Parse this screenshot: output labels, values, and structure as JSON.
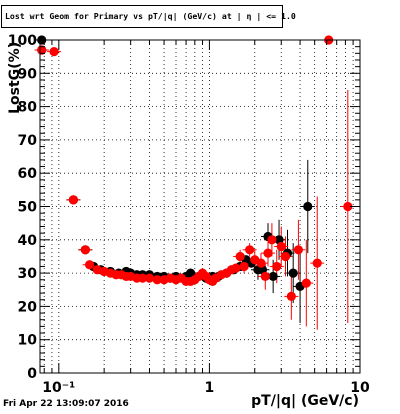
{
  "title": "Lost wrt Geom for Primary vs pT/|q| (GeV/c) at | η | <= 1.0",
  "footer": "Fri Apr 22 13:09:07 2016",
  "chart_data": {
    "type": "scatter",
    "title": "Lost wrt Geom for Primary vs pT/|q| (GeV/c) at | η | <= 1.0",
    "xlabel": "pT/|q| (GeV/c)",
    "ylabel": "LostG(%)",
    "xscale": "log",
    "xlim": [
      0.075,
      10
    ],
    "ylim": [
      0,
      100
    ],
    "xticklabels": [
      "10⁻¹",
      "1",
      "10"
    ],
    "yticks": [
      0,
      10,
      20,
      30,
      40,
      50,
      60,
      70,
      80,
      90,
      100
    ],
    "grid": true,
    "legend": "none",
    "series": [
      {
        "color": "#000000",
        "points": [
          [
            0.077,
            100
          ],
          [
            0.077,
            97
          ],
          [
            0.125,
            52
          ],
          [
            0.15,
            37
          ],
          [
            0.17,
            32
          ],
          [
            0.19,
            31
          ],
          [
            0.22,
            30.5
          ],
          [
            0.25,
            30
          ],
          [
            0.28,
            30.5
          ],
          [
            0.3,
            30
          ],
          [
            0.33,
            29.5
          ],
          [
            0.36,
            29.5
          ],
          [
            0.4,
            29.5
          ],
          [
            0.45,
            29
          ],
          [
            0.5,
            29
          ],
          [
            0.55,
            28.5
          ],
          [
            0.6,
            29
          ],
          [
            0.7,
            29
          ],
          [
            0.75,
            30
          ],
          [
            0.85,
            29
          ],
          [
            0.95,
            28.5
          ],
          [
            1.05,
            29
          ],
          [
            1.15,
            29
          ],
          [
            1.3,
            30
          ],
          [
            1.45,
            31
          ],
          [
            1.6,
            32
          ],
          [
            1.75,
            34
          ],
          [
            1.9,
            33
          ],
          [
            2.1,
            31
          ],
          [
            2.25,
            31
          ],
          [
            2.45,
            41
          ],
          [
            2.65,
            29
          ],
          [
            2.9,
            40
          ],
          [
            3.3,
            36
          ],
          [
            3.6,
            30
          ],
          [
            4.0,
            26
          ],
          [
            4.5,
            50
          ]
        ],
        "errors": [
          [
            0,
            0
          ],
          [
            0,
            0
          ],
          [
            0,
            0
          ],
          [
            0,
            0
          ],
          [
            0,
            0
          ],
          [
            0,
            0
          ],
          [
            0,
            0
          ],
          [
            0,
            0
          ],
          [
            0,
            0
          ],
          [
            0,
            0
          ],
          [
            0,
            0
          ],
          [
            0,
            0
          ],
          [
            0,
            0
          ],
          [
            0,
            0
          ],
          [
            0,
            0
          ],
          [
            0,
            0
          ],
          [
            0,
            0
          ],
          [
            0,
            0
          ],
          [
            0,
            0
          ],
          [
            0,
            0
          ],
          [
            0,
            0
          ],
          [
            0,
            0
          ],
          [
            0,
            0
          ],
          [
            0,
            0
          ],
          [
            0,
            0
          ],
          [
            0,
            0
          ],
          [
            0,
            0
          ],
          [
            0,
            0
          ],
          [
            3,
            3
          ],
          [
            3,
            3
          ],
          [
            4,
            4
          ],
          [
            5,
            5
          ],
          [
            6,
            6
          ],
          [
            7,
            7
          ],
          [
            9,
            9
          ],
          [
            11,
            11
          ],
          [
            14,
            14
          ]
        ]
      },
      {
        "color": "#ff0000",
        "points": [
          [
            0.077,
            97
          ],
          [
            0.093,
            96.5
          ],
          [
            0.125,
            52
          ],
          [
            0.15,
            37
          ],
          [
            0.16,
            32.5
          ],
          [
            0.18,
            31
          ],
          [
            0.2,
            30.5
          ],
          [
            0.22,
            30
          ],
          [
            0.24,
            29.5
          ],
          [
            0.26,
            29.5
          ],
          [
            0.28,
            29
          ],
          [
            0.3,
            29
          ],
          [
            0.33,
            28.5
          ],
          [
            0.36,
            28.5
          ],
          [
            0.4,
            28.5
          ],
          [
            0.45,
            28
          ],
          [
            0.5,
            28
          ],
          [
            0.55,
            28.5
          ],
          [
            0.6,
            28
          ],
          [
            0.65,
            28.5
          ],
          [
            0.7,
            27.5
          ],
          [
            0.75,
            27.5
          ],
          [
            0.8,
            28
          ],
          [
            0.85,
            29
          ],
          [
            0.9,
            30
          ],
          [
            0.95,
            29
          ],
          [
            1.0,
            28
          ],
          [
            1.05,
            27.5
          ],
          [
            1.1,
            28.5
          ],
          [
            1.2,
            29.5
          ],
          [
            1.3,
            30
          ],
          [
            1.4,
            31
          ],
          [
            1.5,
            31.5
          ],
          [
            1.6,
            35
          ],
          [
            1.7,
            32
          ],
          [
            1.85,
            37
          ],
          [
            2.0,
            34
          ],
          [
            2.2,
            33
          ],
          [
            2.35,
            29
          ],
          [
            2.45,
            36
          ],
          [
            2.6,
            40
          ],
          [
            2.8,
            32
          ],
          [
            3.0,
            38
          ],
          [
            3.2,
            35
          ],
          [
            3.5,
            23
          ],
          [
            3.9,
            37
          ],
          [
            4.4,
            27
          ],
          [
            5.2,
            33
          ],
          [
            6.2,
            100
          ],
          [
            8.3,
            50
          ]
        ],
        "errors": [
          [
            0,
            0
          ],
          [
            0,
            0
          ],
          [
            0,
            0
          ],
          [
            0,
            0
          ],
          [
            0,
            0
          ],
          [
            0,
            0
          ],
          [
            0,
            0
          ],
          [
            0,
            0
          ],
          [
            0,
            0
          ],
          [
            0,
            0
          ],
          [
            0,
            0
          ],
          [
            0,
            0
          ],
          [
            0,
            0
          ],
          [
            0,
            0
          ],
          [
            0,
            0
          ],
          [
            0,
            0
          ],
          [
            0,
            0
          ],
          [
            0,
            0
          ],
          [
            0,
            0
          ],
          [
            0,
            0
          ],
          [
            0,
            0
          ],
          [
            0,
            0
          ],
          [
            0,
            0
          ],
          [
            0,
            0
          ],
          [
            0,
            0
          ],
          [
            0,
            0
          ],
          [
            0,
            0
          ],
          [
            0,
            0
          ],
          [
            0,
            0
          ],
          [
            0,
            0
          ],
          [
            0,
            0
          ],
          [
            1,
            1
          ],
          [
            1,
            1
          ],
          [
            2,
            2
          ],
          [
            2,
            2
          ],
          [
            2,
            2
          ],
          [
            3,
            3
          ],
          [
            3,
            3
          ],
          [
            4,
            4
          ],
          [
            4,
            4
          ],
          [
            5,
            5
          ],
          [
            5,
            5
          ],
          [
            6,
            6
          ],
          [
            6,
            6
          ],
          [
            7,
            7
          ],
          [
            9,
            9
          ],
          [
            13,
            13
          ],
          [
            20,
            20
          ],
          [
            0,
            0
          ],
          [
            35,
            35
          ]
        ]
      }
    ]
  }
}
